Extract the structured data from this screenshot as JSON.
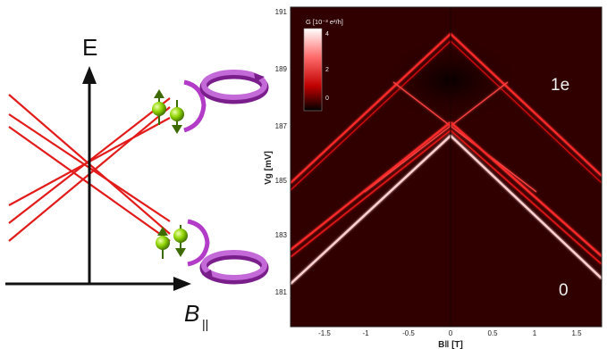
{
  "left_diagram": {
    "y_axis_label": "E",
    "x_axis_label_main": "B",
    "x_axis_label_sub": "||",
    "line_color": "#e21b1b",
    "spin_color": "#8fd400",
    "ring_color": "#b23cc8"
  },
  "heatmap": {
    "colorbar_label": "G [10⁻³ e²/h]",
    "colorbar_ticks": [
      "4",
      "2",
      "0"
    ],
    "y_axis_label": "Vg [mV]",
    "y_ticks": [
      "191",
      "189",
      "187",
      "185",
      "183",
      "181"
    ],
    "x_axis_label": "B‖ [T]",
    "x_ticks": [
      "-1.5",
      "-1",
      "-0.5",
      "0",
      "0.5",
      "1",
      "1.5"
    ],
    "label_top": "1e",
    "label_bottom": "0",
    "background_color": "#300000",
    "line_color": "#ff3a3a"
  }
}
